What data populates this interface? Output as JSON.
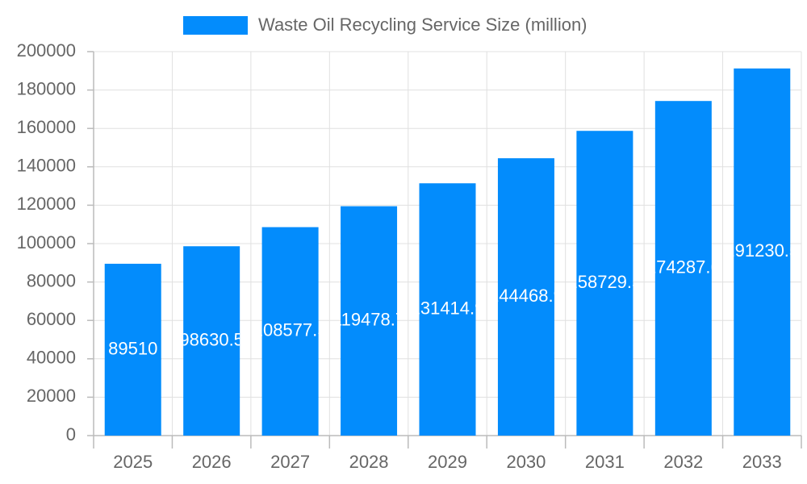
{
  "chart_data": {
    "type": "bar",
    "categories": [
      "2025",
      "2026",
      "2027",
      "2028",
      "2029",
      "2030",
      "2031",
      "2032",
      "2033"
    ],
    "series": [
      {
        "name": "Waste Oil Recycling Service Size (million)",
        "color": "#038cfc",
        "values": [
          89510,
          98630.5,
          108577.5,
          119478.7,
          131414.9,
          144468.9,
          158729.5,
          174287.6,
          191230.5
        ]
      }
    ],
    "ylim": [
      0,
      200000
    ],
    "yticks": [
      0,
      20000,
      40000,
      60000,
      80000,
      100000,
      120000,
      140000,
      160000,
      180000,
      200000
    ],
    "grid": true,
    "legend": "top"
  }
}
